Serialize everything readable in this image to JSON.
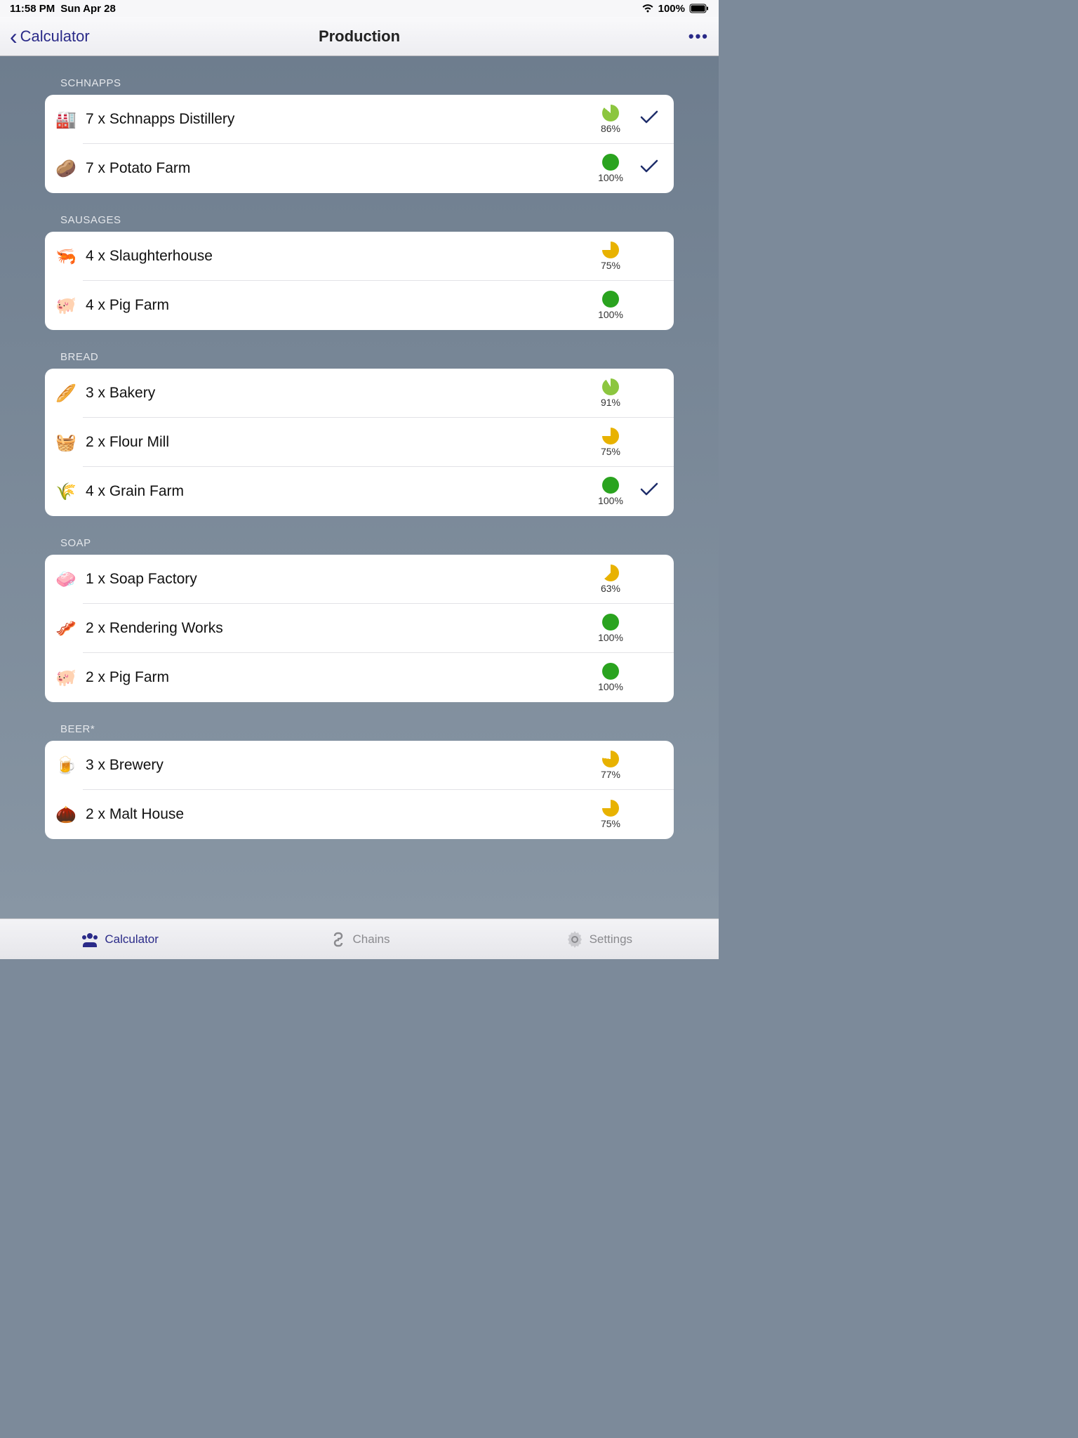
{
  "status": {
    "time": "11:58 PM",
    "date": "Sun Apr 28",
    "battery_pct": "100%"
  },
  "nav": {
    "back_label": "Calculator",
    "title": "Production"
  },
  "colors": {
    "pie_green": "#2aa31f",
    "pie_light_green": "#8cc63f",
    "pie_yellow": "#e8b200",
    "pie_empty": "#ffffff",
    "check": "#1e2d6a"
  },
  "sections": [
    {
      "title": "SCHNAPPS",
      "rows": [
        {
          "icon": "🏭",
          "label": "7 x Schnapps Distillery",
          "pct": 86,
          "pct_label": "86%",
          "color": "#8cc63f",
          "checked": true
        },
        {
          "icon": "🥔",
          "label": "7 x Potato Farm",
          "pct": 100,
          "pct_label": "100%",
          "color": "#2aa31f",
          "checked": true
        }
      ]
    },
    {
      "title": "SAUSAGES",
      "rows": [
        {
          "icon": "🦐",
          "label": "4 x Slaughterhouse",
          "pct": 75,
          "pct_label": "75%",
          "color": "#e8b200",
          "checked": false
        },
        {
          "icon": "🐖",
          "label": "4 x Pig Farm",
          "pct": 100,
          "pct_label": "100%",
          "color": "#2aa31f",
          "checked": false
        }
      ]
    },
    {
      "title": "BREAD",
      "rows": [
        {
          "icon": "🥖",
          "label": "3 x Bakery",
          "pct": 91,
          "pct_label": "91%",
          "color": "#8cc63f",
          "checked": false
        },
        {
          "icon": "🧺",
          "label": "2 x Flour Mill",
          "pct": 75,
          "pct_label": "75%",
          "color": "#e8b200",
          "checked": false
        },
        {
          "icon": "🌾",
          "label": "4 x Grain Farm",
          "pct": 100,
          "pct_label": "100%",
          "color": "#2aa31f",
          "checked": true
        }
      ]
    },
    {
      "title": "SOAP",
      "rows": [
        {
          "icon": "🧼",
          "label": "1 x Soap Factory",
          "pct": 63,
          "pct_label": "63%",
          "color": "#e8b200",
          "checked": false
        },
        {
          "icon": "🥓",
          "label": "2 x Rendering Works",
          "pct": 100,
          "pct_label": "100%",
          "color": "#2aa31f",
          "checked": false
        },
        {
          "icon": "🐖",
          "label": "2 x Pig Farm",
          "pct": 100,
          "pct_label": "100%",
          "color": "#2aa31f",
          "checked": false
        }
      ]
    },
    {
      "title": "BEER*",
      "rows": [
        {
          "icon": "🍺",
          "label": "3 x Brewery",
          "pct": 77,
          "pct_label": "77%",
          "color": "#e8b200",
          "checked": false
        },
        {
          "icon": "🌰",
          "label": "2 x Malt House",
          "pct": 75,
          "pct_label": "75%",
          "color": "#e8b200",
          "checked": false
        }
      ]
    }
  ],
  "tabs": [
    {
      "icon": "users",
      "label": "Calculator",
      "active": true
    },
    {
      "icon": "chain",
      "label": "Chains",
      "active": false
    },
    {
      "icon": "gear",
      "label": "Settings",
      "active": false
    }
  ]
}
